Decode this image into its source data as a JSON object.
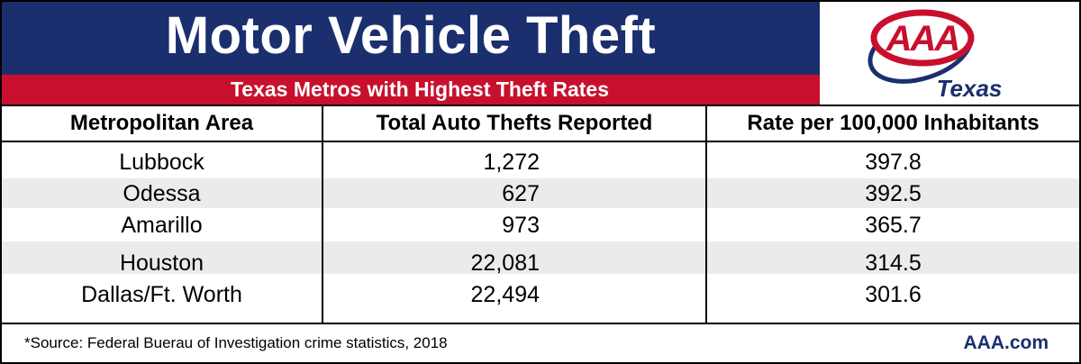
{
  "header": {
    "title": "Motor Vehicle Theft",
    "subtitle": "Texas Metros with Highest Theft Rates"
  },
  "logo": {
    "mark": "AAA",
    "region": "Texas",
    "colors": {
      "red": "#c8102e",
      "blue": "#1b2f6e"
    }
  },
  "table": {
    "columns": [
      "Metropolitan Area",
      "Total Auto Thefts Reported",
      "Rate per 100,000 Inhabitants"
    ],
    "rows": [
      {
        "area": "Lubbock",
        "thefts": "1,272",
        "rate": "397.8"
      },
      {
        "area": "Odessa",
        "thefts": "627",
        "rate": "392.5"
      },
      {
        "area": "Amarillo",
        "thefts": "973",
        "rate": "365.7"
      },
      {
        "area": "Houston",
        "thefts": "22,081",
        "rate": "314.5"
      },
      {
        "area": "Dallas/Ft. Worth",
        "thefts": "22,494",
        "rate": "301.6"
      }
    ]
  },
  "footer": {
    "source": "*Source: Federal Buerau of Investigation crime statistics, 2018",
    "site": "AAA.com"
  },
  "colors": {
    "navy": "#1b2f6e",
    "red": "#c8102e",
    "row_shade": "#ebebeb"
  }
}
